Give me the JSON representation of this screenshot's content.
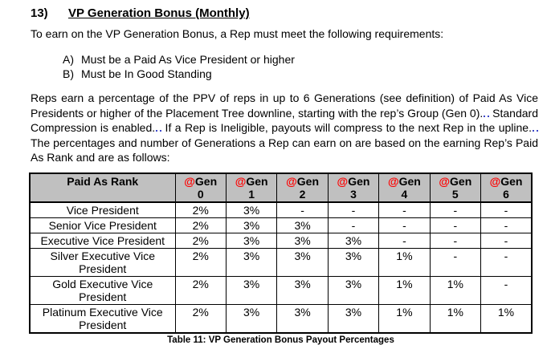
{
  "colors": {
    "header-bg": "#c0c0c0",
    "at-red": "#ff0000",
    "grammar-blue": "#3c46c8"
  },
  "heading": {
    "number": "13)",
    "title": "VP Generation Bonus (Monthly)"
  },
  "intro": "To earn on the VP Generation Bonus, a Rep must meet the following requirements:",
  "requirements": [
    {
      "label": "A)",
      "text": "Must be a Paid As Vice President or higher"
    },
    {
      "label": "B)",
      "text": "Must be In Good Standing"
    }
  ],
  "body_paragraph": {
    "segments": [
      {
        "type": "text",
        "value": "Reps earn a percentage of the PPV of reps in up to 6 Generations (see definition) of Paid As Vice Presidents or higher of the Placement Tree downline, starting with the rep’s Group (Gen 0)."
      },
      {
        "type": "proofing-mark"
      },
      {
        "type": "text",
        "value": " Standard Compression is enabled."
      },
      {
        "type": "proofing-mark"
      },
      {
        "type": "text",
        "value": " If a Rep is Ineligible, payouts will compress to the next Rep in the upline."
      },
      {
        "type": "proofing-mark"
      },
      {
        "type": "text",
        "value": " The percentages and number of Generations a Rep can earn on are based on the earning Rep’s Paid As Rank and are as follows:"
      }
    ]
  },
  "table": {
    "header": {
      "rank_column": "Paid As Rank",
      "gen_columns": [
        {
          "at": "@",
          "word": "Gen",
          "number": "0"
        },
        {
          "at": "@",
          "word": "Gen",
          "number": "1"
        },
        {
          "at": "@",
          "word": "Gen",
          "number": "2"
        },
        {
          "at": "@",
          "word": "Gen",
          "number": "3"
        },
        {
          "at": "@",
          "word": "Gen",
          "number": "4"
        },
        {
          "at": "@",
          "word": "Gen",
          "number": "5"
        },
        {
          "at": "@",
          "word": "Gen",
          "number": "6"
        }
      ]
    },
    "rows": [
      {
        "rank": "Vice President",
        "values": [
          "2%",
          "3%",
          "-",
          "-",
          "-",
          "-",
          "-"
        ]
      },
      {
        "rank": "Senior Vice President",
        "values": [
          "2%",
          "3%",
          "3%",
          "-",
          "-",
          "-",
          "-"
        ]
      },
      {
        "rank": "Executive Vice President",
        "values": [
          "2%",
          "3%",
          "3%",
          "3%",
          "-",
          "-",
          "-"
        ]
      },
      {
        "rank": "Silver Executive Vice President",
        "values": [
          "2%",
          "3%",
          "3%",
          "3%",
          "1%",
          "-",
          "-"
        ]
      },
      {
        "rank": "Gold Executive Vice President",
        "values": [
          "2%",
          "3%",
          "3%",
          "3%",
          "1%",
          "1%",
          "-"
        ]
      },
      {
        "rank": "Platinum Executive Vice President",
        "values": [
          "2%",
          "3%",
          "3%",
          "3%",
          "1%",
          "1%",
          "1%"
        ]
      }
    ],
    "caption": "Table 11: VP Generation Bonus Payout Percentages"
  }
}
